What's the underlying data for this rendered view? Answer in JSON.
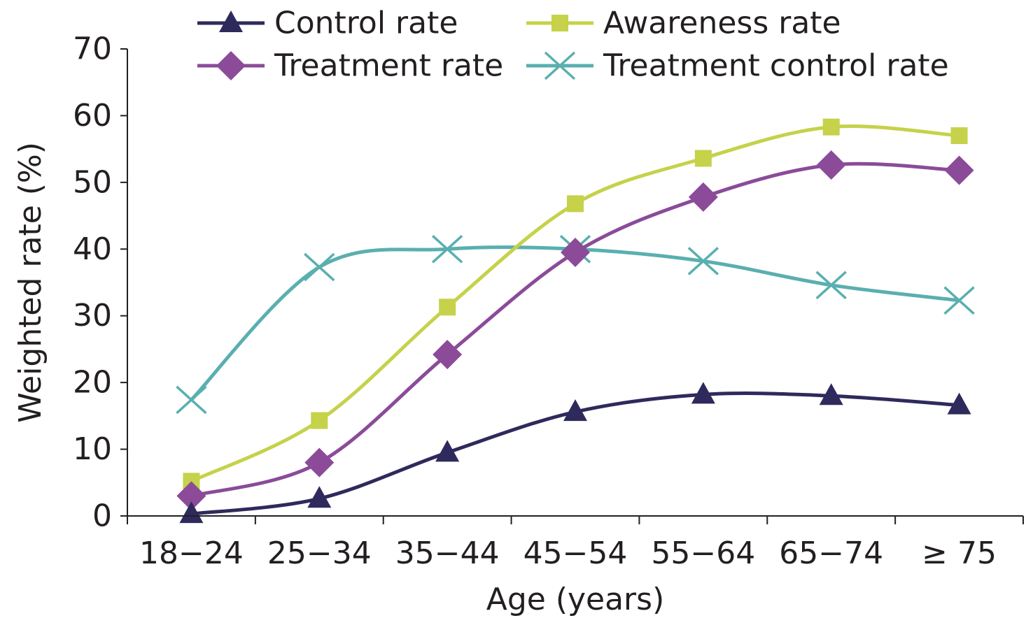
{
  "chart_data": {
    "type": "line",
    "title": "",
    "xlabel": "Age (years)",
    "ylabel": "Weighted rate (%)",
    "categories": [
      "18−24",
      "25−34",
      "35−44",
      "45−54",
      "55−64",
      "65−74",
      "≥ 75"
    ],
    "ylim": [
      0,
      70
    ],
    "yticks": [
      0,
      10,
      20,
      30,
      40,
      50,
      60,
      70
    ],
    "grid": false,
    "legend_placement": "top",
    "series": [
      {
        "name": "Control rate",
        "marker": "triangle",
        "color": "#2e2a5c",
        "values": [
          0.3,
          2.6,
          9.5,
          15.6,
          18.2,
          18.0,
          16.6
        ]
      },
      {
        "name": "Awareness rate",
        "marker": "square",
        "color": "#c5d24a",
        "values": [
          5.2,
          14.3,
          31.3,
          46.8,
          53.6,
          58.3,
          57.0
        ]
      },
      {
        "name": "Treatment rate",
        "marker": "diamond",
        "color": "#8b4b99",
        "values": [
          3.0,
          8.0,
          24.2,
          39.5,
          47.8,
          52.6,
          51.8
        ]
      },
      {
        "name": "Treatment control rate",
        "marker": "x",
        "color": "#5aafaf",
        "values": [
          17.4,
          37.3,
          40.0,
          40.0,
          38.2,
          34.6,
          32.3
        ]
      }
    ]
  }
}
